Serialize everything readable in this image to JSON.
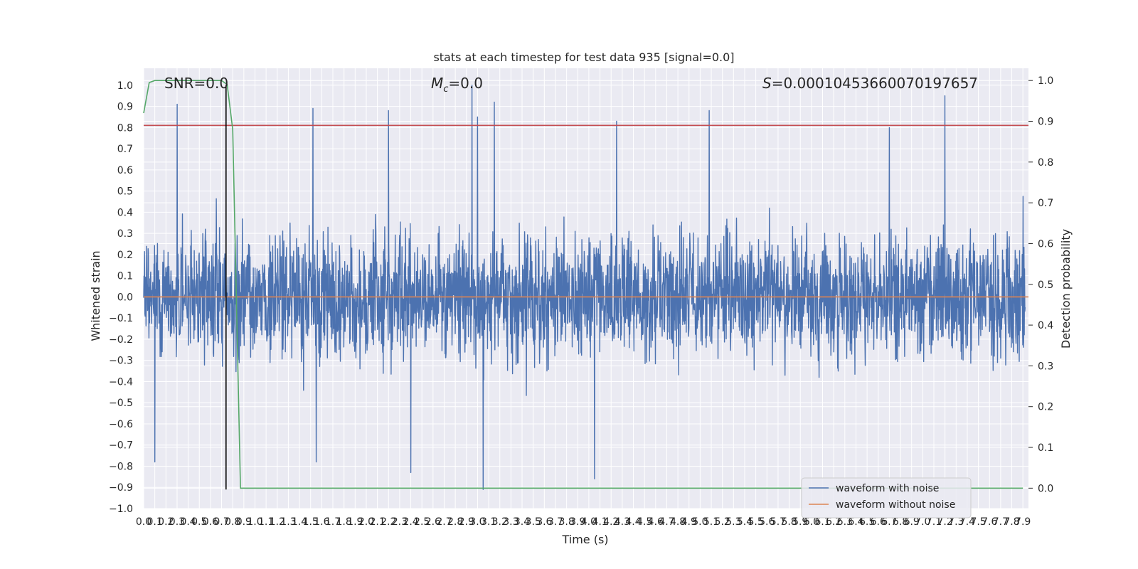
{
  "chart_data": {
    "type": "line",
    "title": "stats at each timestep for test data 935 [signal=0.0]",
    "xlabel": "Time (s)",
    "ylabel": "Whitened strain",
    "y2label": "Detection probability",
    "xlim": [
      0.0,
      7.95
    ],
    "ylim": [
      -1.0,
      1.08
    ],
    "y2lim": [
      -0.05,
      1.03
    ],
    "grid": true,
    "legend_position": "lower-right",
    "background": "#eaeaf2",
    "x_ticks": [
      "0.0",
      "0.1",
      "0.2",
      "0.3",
      "0.4",
      "0.5",
      "0.6",
      "0.7",
      "0.8",
      "0.9",
      "1.0",
      "1.1",
      "1.2",
      "1.3",
      "1.4",
      "1.5",
      "1.6",
      "1.7",
      "1.8",
      "1.9",
      "2.0",
      "2.1",
      "2.2",
      "2.3",
      "2.4",
      "2.5",
      "2.6",
      "2.7",
      "2.8",
      "2.9",
      "3.0",
      "3.1",
      "3.2",
      "3.3",
      "3.4",
      "3.5",
      "3.6",
      "3.7",
      "3.8",
      "3.9",
      "4.0",
      "4.1",
      "4.2",
      "4.3",
      "4.4",
      "4.5",
      "4.6",
      "4.7",
      "4.8",
      "4.9",
      "5.0",
      "5.1",
      "5.2",
      "5.3",
      "5.4",
      "5.5",
      "5.6",
      "5.7",
      "5.8",
      "5.9",
      "6.0",
      "6.1",
      "6.2",
      "6.3",
      "6.4",
      "6.5",
      "6.6",
      "6.7",
      "6.8",
      "6.9",
      "7.0",
      "7.1",
      "7.2",
      "7.3",
      "7.4",
      "7.5",
      "7.6",
      "7.7",
      "7.8",
      "7.9"
    ],
    "y_ticks": [
      "−1.0",
      "−0.9",
      "−0.8",
      "−0.7",
      "−0.6",
      "−0.5",
      "−0.4",
      "−0.3",
      "−0.2",
      "−0.1",
      "0.0",
      "0.1",
      "0.2",
      "0.3",
      "0.4",
      "0.5",
      "0.6",
      "0.7",
      "0.8",
      "0.9",
      "1.0"
    ],
    "y2_ticks": [
      "0.0",
      "0.1",
      "0.2",
      "0.3",
      "0.4",
      "0.5",
      "0.6",
      "0.7",
      "0.8",
      "0.9",
      "1.0"
    ],
    "annotations": {
      "snr": "SNR=0.0",
      "mc_symbol": "M",
      "mc_subscript": "c",
      "mc_value": "=0.0",
      "s_symbol": "S",
      "s_value": "=0.00010453660070197657"
    },
    "series": [
      {
        "name": "waveform with noise",
        "axis": "left",
        "color": "#4c72b0",
        "style": "noisy-strain",
        "envelope": {
          "typical_max": 0.42,
          "typical_min": -0.45,
          "peak_max": 1.0,
          "peak_min": -0.91
        },
        "notable_peaks": [
          [
            0.3,
            0.91
          ],
          [
            1.52,
            0.89
          ],
          [
            2.2,
            0.88
          ],
          [
            2.95,
            1.0
          ],
          [
            3.0,
            0.85
          ],
          [
            3.15,
            0.92
          ],
          [
            4.25,
            0.83
          ],
          [
            5.08,
            0.88
          ],
          [
            6.7,
            0.8
          ],
          [
            7.2,
            0.95
          ]
        ],
        "notable_troughs": [
          [
            0.1,
            -0.78
          ],
          [
            1.55,
            -0.78
          ],
          [
            2.4,
            -0.83
          ],
          [
            3.05,
            -0.91
          ],
          [
            4.05,
            -0.86
          ]
        ]
      },
      {
        "name": "waveform without noise",
        "axis": "left",
        "color": "#dd8452",
        "values_constant": 0.0
      },
      {
        "axis": "right",
        "color": "#55a868",
        "x": [
          0.0,
          0.05,
          0.1,
          0.15,
          0.2,
          0.7,
          0.75,
          0.8,
          0.87,
          7.9
        ],
        "y": [
          0.92,
          0.995,
          1.0,
          1.0,
          1.0,
          1.0,
          0.99,
          0.88,
          0.0,
          0.0
        ]
      }
    ],
    "threshold_line": {
      "axis": "left",
      "y": 0.81,
      "color": "#c44e52"
    },
    "marker_line": {
      "x": 0.74,
      "y_from": -0.91,
      "y_to": 1.0,
      "color": "#000000"
    }
  }
}
